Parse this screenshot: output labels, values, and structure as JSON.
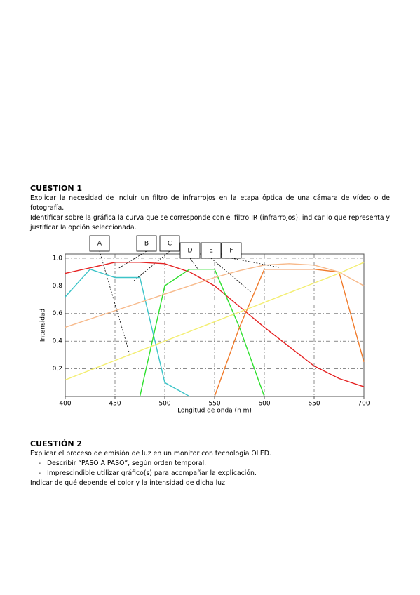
{
  "question1": {
    "title": "CUESTION 1",
    "paragraphs": [
      "Explicar la necesidad de incluir un filtro de infrarrojos en la etapa óptica de una cámara de vídeo o de fotografía.",
      "Identificar sobre la gráfica la curva que se corresponde con el filtro IR (infrarrojos), indicar lo que representa y justificar la opción seleccionada."
    ]
  },
  "chart_data": {
    "type": "line",
    "x_label": "Longitud de onda (n m)",
    "y_label": "Intensidad",
    "callouts": [
      "A",
      "B",
      "C",
      "D",
      "E",
      "F"
    ],
    "x": [
      400,
      425,
      450,
      475,
      500,
      525,
      550,
      575,
      600,
      625,
      650,
      675,
      700
    ],
    "series": [
      {
        "color": "#e52222",
        "values": [
          0.89,
          0.93,
          0.97,
          0.97,
          0.96,
          0.9,
          0.8,
          0.65,
          0.5,
          0.36,
          0.22,
          0.13,
          0.07
        ]
      },
      {
        "color": "#3cc4c8",
        "values": [
          0.72,
          0.92,
          0.86,
          0.86,
          0.1,
          0,
          null,
          null,
          null,
          null,
          null,
          null,
          null
        ]
      },
      {
        "color": "#2ee02e",
        "values": [
          null,
          null,
          null,
          0,
          0.8,
          0.92,
          0.92,
          0.5,
          0,
          null,
          null,
          null,
          null
        ]
      },
      {
        "color": "#f07a2a",
        "values": [
          null,
          null,
          null,
          null,
          null,
          null,
          0,
          0.5,
          0.92,
          0.92,
          0.92,
          0.9,
          0.25
        ]
      },
      {
        "color": "#f7b98a",
        "values": [
          0.5,
          0.56,
          0.62,
          0.68,
          0.74,
          0.8,
          0.86,
          0.91,
          0.95,
          0.96,
          0.95,
          0.9,
          0.8
        ]
      },
      {
        "color": "#f3ee70",
        "values": [
          0.12,
          0.19,
          0.26,
          0.33,
          0.4,
          0.47,
          0.54,
          0.61,
          0.68,
          0.75,
          0.82,
          0.89,
          0.97
        ]
      }
    ],
    "xlim": [
      400,
      700
    ],
    "ylim": [
      0,
      1.03
    ],
    "xticks": [
      400,
      450,
      500,
      550,
      600,
      650,
      700
    ],
    "yticks": [
      {
        "value": 0.2,
        "label": "0,2"
      },
      {
        "value": 0.4,
        "label": "0,4"
      },
      {
        "value": 0.6,
        "label": "0,6"
      },
      {
        "value": 0.8,
        "label": "0,8"
      },
      {
        "value": 1.0,
        "label": "1,0"
      }
    ],
    "grid": true
  },
  "question2": {
    "title": "CUESTIÓN 2",
    "intro": "Explicar el proceso de emisión de luz en un monitor con tecnología OLED.",
    "bullets": [
      "Describir “PASO A PASO”, según orden temporal.",
      "Imprescindible utilizar gráfico(s) para acompañar la explicación."
    ],
    "closing": "Indicar de qué depende el color y la intensidad de dicha luz."
  }
}
